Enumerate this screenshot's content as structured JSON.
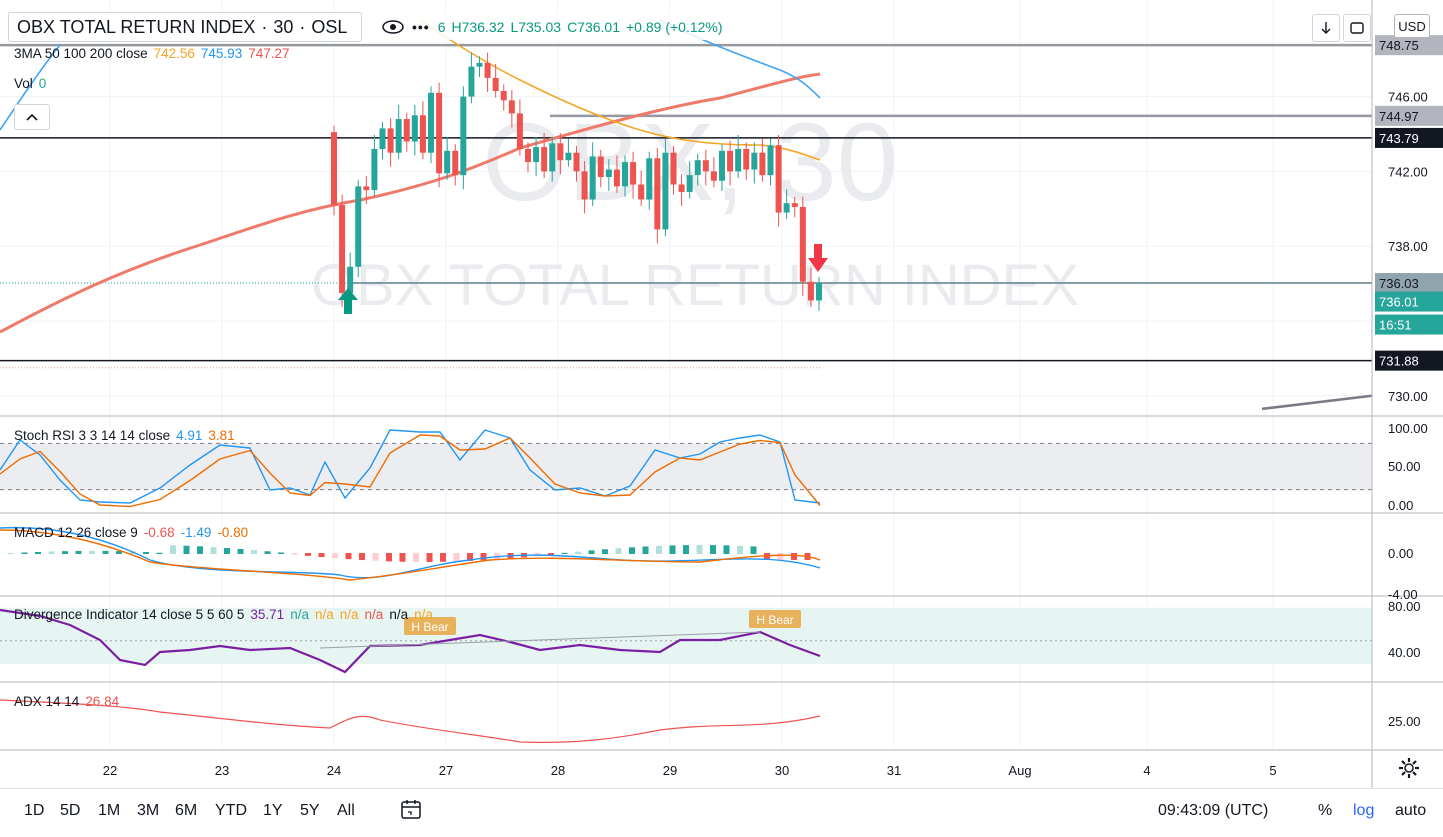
{
  "header": {
    "symbol": "OBX TOTAL RETURN INDEX",
    "interval": "30",
    "exchange": "OSL",
    "sep": "·",
    "ohlc_open_tail": "6",
    "high": "H736.32",
    "low": "L735.03",
    "close": "C736.01",
    "change": "+0.89 (+0.12%)"
  },
  "watermark": {
    "symbol": "OBX, 30",
    "name": "OBX TOTAL RETURN INDEX"
  },
  "legend": {
    "ma": {
      "label": "3MA 50 100 200 close",
      "v1": "742.56",
      "v2": "745.93",
      "v3": "747.27"
    },
    "vol": {
      "label": "Vol",
      "value": "0"
    },
    "stoch": {
      "label": "Stoch RSI 3 3 14 14 close",
      "k": "4.91",
      "d": "3.81"
    },
    "macd": {
      "label": "MACD 12 26 close 9",
      "hist": "-0.68",
      "macd": "-1.49",
      "signal": "-0.80"
    },
    "div": {
      "label": "Divergence Indicator 14 close 5 5 60 5",
      "value": "35.71",
      "na": [
        "n/a",
        "n/a",
        "n/a",
        "n/a",
        "n/a",
        "n/a"
      ]
    },
    "adx": {
      "label": "ADX 14 14",
      "value": "26.84"
    }
  },
  "toolbar": {
    "currency": "USD",
    "ranges": [
      "1D",
      "5D",
      "1M",
      "3M",
      "6M",
      "YTD",
      "1Y",
      "5Y",
      "All"
    ],
    "clock": "09:43:09 (UTC)",
    "percent": "%",
    "log": "log",
    "auto": "auto"
  },
  "price_labels": {
    "l748": "748.75",
    "l744": "744.97",
    "l743": "743.79",
    "l736a": "736.03",
    "l736b": "736.01",
    "timer": "16:51",
    "l731": "731.88"
  },
  "annotations": {
    "hbear": "H Bear"
  },
  "colors": {
    "up": "#26a69a",
    "down": "#ef5350",
    "ma50": "#f5a623",
    "ma100": "#42a5f5",
    "ma200": "#f07a6a",
    "rsi_k": "#2196f3",
    "rsi_d": "#ef6c00",
    "div": "#7b1fa2",
    "adx": "#ef5350"
  },
  "chart_data": [
    {
      "type": "candlestick",
      "pane": "price",
      "x_ticks": [
        "22",
        "23",
        "24",
        "27",
        "28",
        "29",
        "30",
        "31",
        "Aug",
        "4",
        "5"
      ],
      "y_ticks": [
        "746.00",
        "742.00",
        "738.00",
        "730.00"
      ],
      "y_range": [
        728.5,
        750
      ],
      "candles": [
        [
          744.1,
          740.2
        ],
        [
          740.2,
          735.5
        ],
        [
          735.5,
          736.9
        ],
        [
          736.9,
          741.2
        ],
        [
          741.2,
          741.0
        ],
        [
          741.0,
          743.2
        ],
        [
          743.2,
          744.3
        ],
        [
          744.3,
          743.0
        ],
        [
          743.0,
          744.8
        ],
        [
          744.8,
          743.6
        ],
        [
          743.6,
          745.0
        ],
        [
          745.0,
          743.0
        ],
        [
          743.0,
          746.2
        ],
        [
          746.2,
          741.9
        ],
        [
          741.9,
          743.1
        ],
        [
          743.1,
          741.8
        ],
        [
          741.8,
          746.0
        ],
        [
          746.0,
          747.6
        ],
        [
          747.6,
          747.8
        ],
        [
          747.8,
          747.0
        ],
        [
          747.0,
          746.3
        ],
        [
          746.3,
          745.8
        ],
        [
          745.8,
          745.1
        ],
        [
          745.1,
          743.2
        ],
        [
          743.2,
          742.5
        ],
        [
          742.5,
          743.3
        ],
        [
          743.3,
          742.0
        ],
        [
          742.0,
          743.5
        ],
        [
          743.5,
          742.6
        ],
        [
          742.6,
          743.0
        ],
        [
          743.0,
          742.0
        ],
        [
          742.0,
          740.5
        ],
        [
          740.5,
          742.8
        ],
        [
          742.8,
          741.7
        ],
        [
          741.7,
          742.1
        ],
        [
          742.1,
          741.2
        ],
        [
          741.2,
          742.5
        ],
        [
          742.5,
          741.3
        ],
        [
          741.3,
          740.5
        ],
        [
          740.5,
          742.7
        ],
        [
          742.7,
          738.9
        ],
        [
          738.9,
          743.0
        ],
        [
          743.0,
          741.3
        ],
        [
          741.3,
          740.9
        ],
        [
          740.9,
          741.8
        ],
        [
          741.8,
          742.6
        ],
        [
          742.6,
          742.0
        ],
        [
          742.0,
          741.5
        ],
        [
          741.5,
          743.1
        ],
        [
          743.1,
          742.0
        ],
        [
          742.0,
          743.2
        ],
        [
          743.2,
          742.1
        ],
        [
          742.1,
          743.0
        ],
        [
          743.0,
          741.8
        ],
        [
          741.8,
          743.4
        ],
        [
          743.4,
          739.8
        ],
        [
          739.8,
          740.3
        ],
        [
          740.3,
          740.1
        ],
        [
          740.1,
          736.1
        ],
        [
          736.1,
          735.1
        ],
        [
          735.1,
          736.01
        ]
      ],
      "ma_levels": [
        742.56,
        745.93,
        747.27
      ],
      "horizontal_levels": [
        748.75,
        744.97,
        743.79,
        736.03,
        731.88
      ],
      "last_price": 736.01
    },
    {
      "type": "line",
      "pane": "stoch_rsi",
      "y_ticks": [
        "100.00",
        "50.00",
        "0.00"
      ],
      "y_range": [
        -5,
        105
      ],
      "bands": [
        20,
        80
      ],
      "series": [
        {
          "name": "K",
          "last": 4.91
        },
        {
          "name": "D",
          "last": 3.81
        }
      ]
    },
    {
      "type": "bar",
      "pane": "macd",
      "y_ticks": [
        "0.00",
        "-4.00"
      ],
      "y_range": [
        -4,
        2
      ],
      "last": {
        "hist": -0.68,
        "macd": -1.49,
        "signal": -0.8
      }
    },
    {
      "type": "line",
      "pane": "divergence",
      "y_ticks": [
        "80.00",
        "40.00"
      ],
      "y_range": [
        25,
        85
      ],
      "last": 35.71
    },
    {
      "type": "line",
      "pane": "adx",
      "y_ticks": [
        "25.00"
      ],
      "y_range": [
        15,
        35
      ],
      "last": 26.84
    }
  ]
}
